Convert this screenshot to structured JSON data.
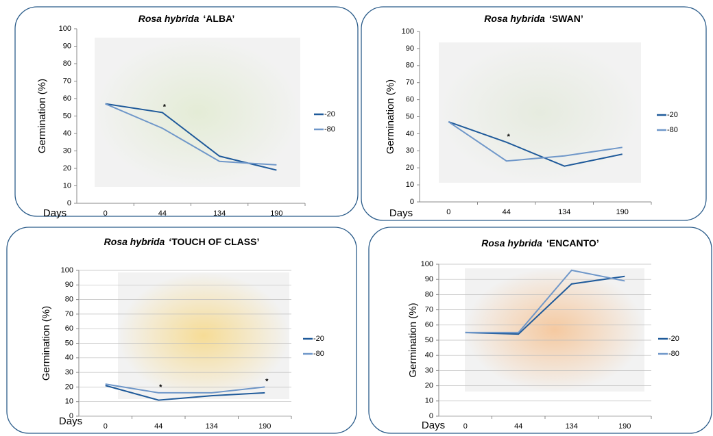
{
  "chart_data": [
    {
      "type": "line",
      "title": {
        "species": "Rosa hybrida",
        "cultivar": "‘ALBA’"
      },
      "x_label": "Days",
      "y_label": "Germination (%)",
      "categories": [
        "0",
        "44",
        "134",
        "190"
      ],
      "series": [
        {
          "name": "-20",
          "color": "#1f5a9a",
          "values": [
            57,
            52,
            27,
            19
          ]
        },
        {
          "name": "-80",
          "color": "#6f97c9",
          "values": [
            57,
            43,
            24,
            22
          ]
        }
      ],
      "annotations": [
        {
          "text": "*",
          "x": "44"
        }
      ],
      "background": "#e4ecd6",
      "ylim": [
        0,
        100
      ],
      "yticks": [
        0,
        10,
        20,
        30,
        40,
        50,
        60,
        70,
        80,
        90,
        100
      ],
      "grid": false
    },
    {
      "type": "line",
      "title": {
        "species": "Rosa hybrida",
        "cultivar": "‘SWAN’"
      },
      "x_label": "Days",
      "y_label": "Germination (%)",
      "categories": [
        "0",
        "44",
        "134",
        "190"
      ],
      "series": [
        {
          "name": "-20",
          "color": "#1f5a9a",
          "values": [
            47,
            35,
            21,
            28
          ]
        },
        {
          "name": "-80",
          "color": "#6f97c9",
          "values": [
            47,
            24,
            27,
            32
          ]
        }
      ],
      "annotations": [
        {
          "text": "*",
          "x": "44"
        }
      ],
      "background": "#e6ebdf",
      "ylim": [
        0,
        100
      ],
      "yticks": [
        0,
        10,
        20,
        30,
        40,
        50,
        60,
        70,
        80,
        90,
        100
      ],
      "grid": false
    },
    {
      "type": "line",
      "title": {
        "species": "Rosa hybrida",
        "cultivar": "‘TOUCH OF CLASS’"
      },
      "x_label": "Days",
      "y_label": "Germination (%)",
      "categories": [
        "0",
        "44",
        "134",
        "190"
      ],
      "series": [
        {
          "name": "-20",
          "color": "#1f5a9a",
          "values": [
            21,
            11,
            14,
            16
          ]
        },
        {
          "name": "-80",
          "color": "#6f97c9",
          "values": [
            22,
            16,
            16,
            20
          ]
        }
      ],
      "annotations": [
        {
          "text": "*",
          "x": "44"
        },
        {
          "text": "*",
          "x": "190"
        }
      ],
      "background": "#f6dc96",
      "ylim": [
        0,
        100
      ],
      "yticks": [
        0,
        10,
        20,
        30,
        40,
        50,
        60,
        70,
        80,
        90,
        100
      ],
      "grid": true
    },
    {
      "type": "line",
      "title": {
        "species": "Rosa hybrida",
        "cultivar": "‘ENCANTO’"
      },
      "x_label": "Days",
      "y_label": "Germination (%)",
      "categories": [
        "0",
        "44",
        "134",
        "190"
      ],
      "series": [
        {
          "name": "-20",
          "color": "#1f5a9a",
          "values": [
            55,
            54,
            87,
            92
          ]
        },
        {
          "name": "-80",
          "color": "#6f97c9",
          "values": [
            55,
            55,
            96,
            89
          ]
        }
      ],
      "annotations": [],
      "background": "#f5c9a0",
      "ylim": [
        0,
        100
      ],
      "yticks": [
        0,
        10,
        20,
        30,
        40,
        50,
        60,
        70,
        80,
        90,
        100
      ],
      "grid": true
    }
  ]
}
